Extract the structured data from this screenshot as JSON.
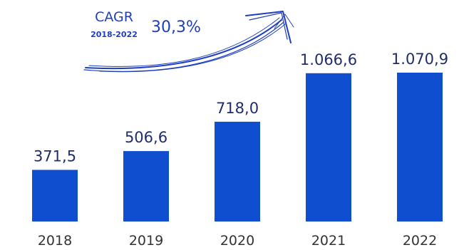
{
  "chart_data": {
    "type": "bar",
    "categories": [
      "2018",
      "2019",
      "2020",
      "2021",
      "2022"
    ],
    "values": [
      371.5,
      506.6,
      718.0,
      1066.6,
      1070.9
    ],
    "value_labels": [
      "371,5",
      "506,6",
      "718,0",
      "1.066,6",
      "1.070,9"
    ],
    "ylim": [
      0,
      1070.9
    ],
    "grid": false,
    "annotations": {
      "cagr_title": "CAGR",
      "cagr_period": "2018-2022",
      "cagr_value": "30,3%"
    }
  },
  "colors": {
    "bar": "#0f4fcf",
    "annotation": "#1f3fbf",
    "value_text": "#1f2d6b",
    "category_text": "#333333"
  }
}
